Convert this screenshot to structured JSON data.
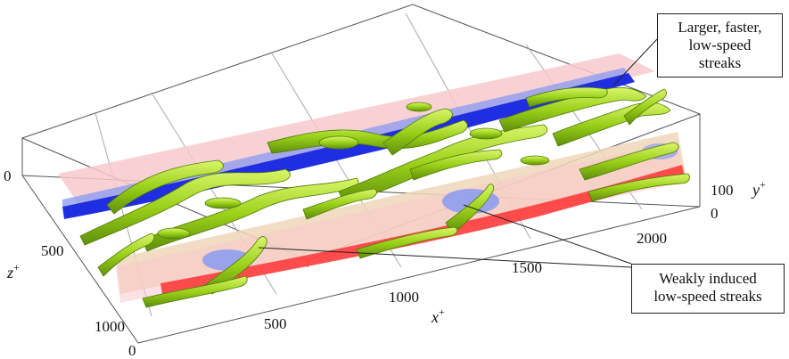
{
  "figure": {
    "x_axis": {
      "label": "x",
      "superscript": "+",
      "ticks": [
        "0",
        "500",
        "1000",
        "1500",
        "2000"
      ]
    },
    "z_axis": {
      "label": "z",
      "superscript": "+",
      "ticks": [
        "0",
        "500",
        "1000"
      ]
    },
    "y_axis": {
      "label": "y",
      "superscript": "+",
      "ticks": [
        "0",
        "100"
      ]
    },
    "annotations": [
      {
        "id": "larger-faster",
        "lines": [
          "Larger, faster,",
          "low-speed",
          "streaks"
        ]
      },
      {
        "id": "weakly-induced",
        "lines": [
          "Weakly induced",
          "low-speed streaks"
        ]
      }
    ],
    "colors": {
      "vortex": "#9bd11a",
      "vortex_edge": "#4f7a08",
      "low_speed": "#1f2ee0",
      "low_speed_light": "#8f9df0",
      "high_speed": "#ff3b3b",
      "plane_pink": "#f7c9cc",
      "plane_tan": "#f0d6b8"
    }
  }
}
